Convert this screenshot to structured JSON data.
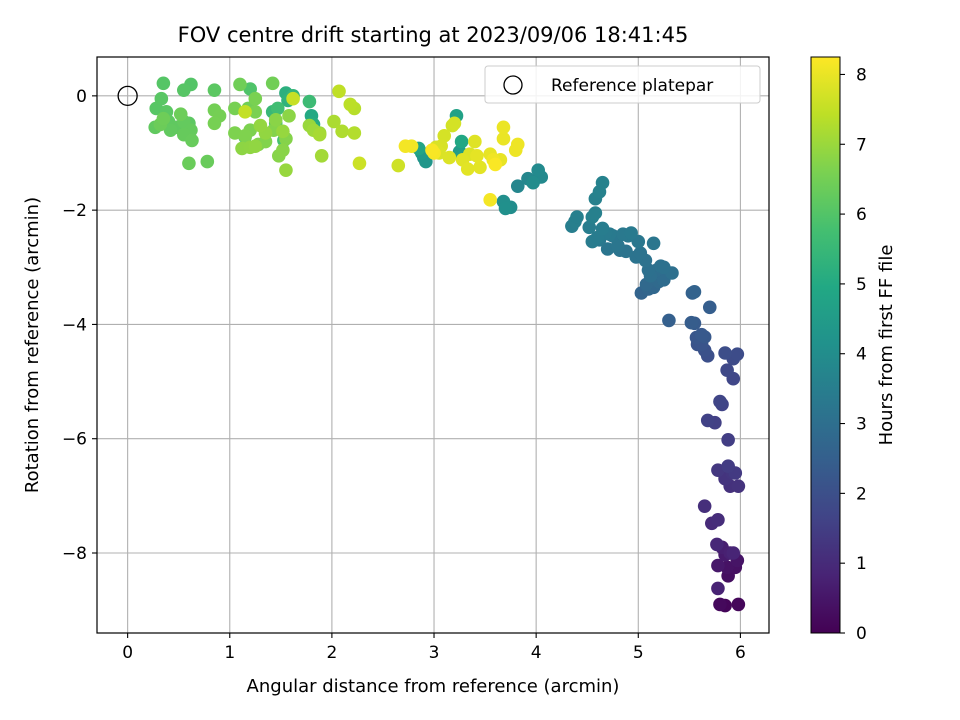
{
  "chart_data": {
    "type": "scatter",
    "title": "FOV centre drift starting at 2023/09/06 18:41:45",
    "xlabel": "Angular distance from reference (arcmin)",
    "ylabel": "Rotation from reference (arcmin)",
    "xlim": [
      -0.3,
      6.28
    ],
    "ylim": [
      -9.4,
      0.68
    ],
    "xticks": [
      0,
      1,
      2,
      3,
      4,
      5,
      6
    ],
    "yticks": [
      0,
      -2,
      -4,
      -6,
      -8
    ],
    "grid": true,
    "legend": {
      "position": "top-right",
      "entries": [
        "Reference platepar"
      ]
    },
    "reference_point": {
      "x": 0,
      "y": 0,
      "label": "Reference platepar"
    },
    "colorbar": {
      "label": "Hours from first FF file",
      "colormap": "viridis",
      "range": [
        0,
        8.25
      ],
      "ticks": [
        0,
        1,
        2,
        3,
        4,
        5,
        6,
        7,
        8
      ]
    },
    "series": [
      {
        "points": [
          [
            5.85,
            -8.92,
            0.1
          ],
          [
            5.98,
            -8.9,
            0.15
          ],
          [
            5.8,
            -8.9,
            0.2
          ],
          [
            5.88,
            -8.4,
            0.3
          ],
          [
            5.95,
            -8.25,
            0.35
          ],
          [
            5.87,
            -8.25,
            0.4
          ],
          [
            5.97,
            -8.13,
            0.45
          ],
          [
            5.78,
            -8.22,
            0.55
          ],
          [
            5.85,
            -8.03,
            0.6
          ],
          [
            5.82,
            -7.9,
            0.7
          ],
          [
            5.9,
            -8.0,
            0.75
          ],
          [
            5.78,
            -8.62,
            0.8
          ],
          [
            5.93,
            -8.0,
            0.85
          ],
          [
            5.77,
            -7.85,
            0.9
          ],
          [
            5.72,
            -7.48,
            1.0
          ],
          [
            5.78,
            -7.42,
            1.05
          ],
          [
            5.65,
            -7.18,
            1.1
          ],
          [
            5.9,
            -6.83,
            1.15
          ],
          [
            5.98,
            -6.83,
            1.2
          ],
          [
            5.85,
            -6.7,
            1.25
          ],
          [
            5.92,
            -6.6,
            1.3
          ],
          [
            5.78,
            -6.55,
            1.35
          ],
          [
            5.95,
            -6.6,
            1.4
          ],
          [
            5.88,
            -6.48,
            1.45
          ],
          [
            5.88,
            -6.02,
            1.5
          ],
          [
            5.75,
            -5.72,
            1.55
          ],
          [
            5.68,
            -5.68,
            1.6
          ],
          [
            5.82,
            -5.4,
            1.65
          ],
          [
            5.8,
            -5.35,
            1.7
          ],
          [
            5.93,
            -4.95,
            1.75
          ],
          [
            5.87,
            -4.8,
            1.8
          ],
          [
            5.93,
            -4.6,
            1.85
          ],
          [
            5.97,
            -4.52,
            1.9
          ],
          [
            5.85,
            -4.5,
            1.95
          ],
          [
            5.68,
            -4.55,
            2.0
          ],
          [
            5.65,
            -4.45,
            2.05
          ],
          [
            5.58,
            -4.35,
            2.1
          ],
          [
            5.62,
            -4.35,
            2.15
          ],
          [
            5.57,
            -4.23,
            2.2
          ],
          [
            5.65,
            -4.22,
            2.25
          ],
          [
            5.62,
            -4.18,
            2.3
          ],
          [
            5.55,
            -3.98,
            2.35
          ],
          [
            5.52,
            -3.97,
            2.4
          ],
          [
            5.7,
            -3.7,
            2.45
          ],
          [
            5.3,
            -3.93,
            2.5
          ],
          [
            5.53,
            -3.45,
            2.55
          ],
          [
            5.55,
            -3.43,
            2.6
          ],
          [
            5.03,
            -3.45,
            2.65
          ],
          [
            5.1,
            -3.38,
            2.7
          ],
          [
            5.15,
            -3.35,
            2.75
          ],
          [
            5.08,
            -3.3,
            2.8
          ],
          [
            5.2,
            -3.25,
            2.85
          ],
          [
            5.25,
            -3.22,
            2.9
          ],
          [
            5.18,
            -3.05,
            2.95
          ],
          [
            5.12,
            -3.15,
            3.0
          ],
          [
            5.33,
            -3.1,
            3.02
          ],
          [
            5.1,
            -3.05,
            3.04
          ],
          [
            5.22,
            -2.98,
            3.06
          ],
          [
            5.25,
            -3.0,
            3.08
          ],
          [
            5.07,
            -2.88,
            3.1
          ],
          [
            4.98,
            -2.82,
            3.12
          ],
          [
            5.02,
            -2.75,
            3.14
          ],
          [
            4.88,
            -2.72,
            3.16
          ],
          [
            4.82,
            -2.7,
            3.18
          ],
          [
            4.7,
            -2.68,
            3.2
          ],
          [
            4.8,
            -2.62,
            3.22
          ],
          [
            5.15,
            -2.58,
            3.24
          ],
          [
            5.0,
            -2.55,
            3.26
          ],
          [
            4.75,
            -2.45,
            3.28
          ],
          [
            4.62,
            -2.52,
            3.3
          ],
          [
            4.9,
            -2.45,
            3.32
          ],
          [
            4.85,
            -2.42,
            3.34
          ],
          [
            4.93,
            -2.4,
            3.36
          ],
          [
            4.72,
            -2.42,
            3.38
          ],
          [
            4.68,
            -2.4,
            3.4
          ],
          [
            4.55,
            -2.55,
            3.42
          ],
          [
            4.6,
            -2.48,
            3.44
          ],
          [
            4.65,
            -2.32,
            3.46
          ],
          [
            4.52,
            -2.3,
            3.48
          ],
          [
            4.35,
            -2.28,
            3.5
          ],
          [
            4.38,
            -2.2,
            3.52
          ],
          [
            4.4,
            -2.12,
            3.54
          ],
          [
            4.55,
            -2.12,
            3.56
          ],
          [
            4.58,
            -2.05,
            3.58
          ],
          [
            4.58,
            -1.8,
            3.6
          ],
          [
            4.62,
            -1.68,
            3.62
          ],
          [
            4.65,
            -1.52,
            3.64
          ],
          [
            4.03,
            -1.42,
            3.7
          ],
          [
            3.82,
            -1.58,
            3.75
          ],
          [
            3.92,
            -1.45,
            3.8
          ],
          [
            4.05,
            -1.42,
            3.85
          ],
          [
            4.02,
            -1.3,
            3.9
          ],
          [
            3.97,
            -1.52,
            3.95
          ],
          [
            3.75,
            -1.95,
            4.0
          ],
          [
            3.68,
            -1.85,
            4.05
          ],
          [
            3.7,
            -1.97,
            4.1
          ],
          [
            2.9,
            -1.08,
            4.2
          ],
          [
            2.92,
            -1.15,
            4.3
          ],
          [
            2.88,
            -1.0,
            4.4
          ],
          [
            3.25,
            -0.98,
            4.5
          ],
          [
            3.28,
            -1.05,
            4.6
          ],
          [
            3.22,
            -0.35,
            4.7
          ],
          [
            2.85,
            -0.92,
            4.8
          ],
          [
            3.27,
            -0.8,
            4.9
          ],
          [
            1.8,
            -0.35,
            5.0
          ],
          [
            1.82,
            -0.5,
            5.1
          ],
          [
            1.55,
            0.05,
            5.2
          ],
          [
            1.57,
            -0.08,
            5.3
          ],
          [
            1.62,
            0.0,
            5.4
          ],
          [
            1.42,
            -0.28,
            5.5
          ],
          [
            1.78,
            -0.1,
            5.6
          ],
          [
            1.47,
            -0.22,
            5.7
          ],
          [
            1.53,
            -0.78,
            5.8
          ],
          [
            1.45,
            -0.48,
            5.9
          ],
          [
            1.2,
            0.12,
            5.95
          ],
          [
            1.15,
            -0.72,
            6.0
          ],
          [
            0.62,
            0.2,
            6.02
          ],
          [
            0.35,
            0.22,
            6.04
          ],
          [
            0.55,
            0.1,
            6.06
          ],
          [
            0.28,
            -0.22,
            6.08
          ],
          [
            0.33,
            -0.05,
            6.1
          ],
          [
            0.38,
            -0.28,
            6.12
          ],
          [
            0.85,
            0.1,
            6.14
          ],
          [
            0.6,
            -0.48,
            6.16
          ],
          [
            0.4,
            -0.45,
            6.18
          ],
          [
            0.48,
            -0.55,
            6.2
          ],
          [
            0.27,
            -0.55,
            6.22
          ],
          [
            0.42,
            -0.6,
            6.24
          ],
          [
            0.55,
            -0.45,
            6.26
          ],
          [
            0.62,
            -0.6,
            6.28
          ],
          [
            0.55,
            -0.68,
            6.3
          ],
          [
            0.63,
            -0.78,
            6.32
          ],
          [
            0.78,
            -1.15,
            6.34
          ],
          [
            0.6,
            -1.18,
            6.36
          ],
          [
            0.32,
            -0.5,
            6.38
          ],
          [
            0.52,
            -0.32,
            6.4
          ],
          [
            0.35,
            -0.4,
            6.42
          ],
          [
            1.1,
            0.2,
            6.44
          ],
          [
            1.42,
            0.22,
            6.46
          ],
          [
            1.18,
            -0.22,
            6.48
          ],
          [
            0.85,
            -0.25,
            6.5
          ],
          [
            0.9,
            -0.35,
            6.52
          ],
          [
            0.85,
            -0.48,
            6.54
          ],
          [
            1.05,
            -0.22,
            6.56
          ],
          [
            1.25,
            -0.05,
            6.58
          ],
          [
            1.25,
            -0.28,
            6.6
          ],
          [
            1.2,
            -0.6,
            6.62
          ],
          [
            1.05,
            -0.65,
            6.64
          ],
          [
            1.15,
            -0.7,
            6.66
          ],
          [
            1.28,
            -0.85,
            6.68
          ],
          [
            1.35,
            -0.8,
            6.7
          ],
          [
            1.43,
            -0.6,
            6.72
          ],
          [
            1.55,
            -0.75,
            6.74
          ],
          [
            1.48,
            -1.05,
            6.76
          ],
          [
            1.52,
            -0.95,
            6.78
          ],
          [
            1.45,
            -0.42,
            6.8
          ],
          [
            1.58,
            -0.35,
            6.82
          ],
          [
            1.12,
            -0.92,
            6.84
          ],
          [
            1.2,
            -0.9,
            6.86
          ],
          [
            1.25,
            -0.88,
            6.88
          ],
          [
            1.35,
            -0.65,
            6.9
          ],
          [
            1.3,
            -0.52,
            6.92
          ],
          [
            1.52,
            -0.62,
            6.94
          ],
          [
            1.55,
            -1.3,
            6.96
          ],
          [
            1.78,
            -0.52,
            6.98
          ],
          [
            1.88,
            -0.65,
            7.0
          ],
          [
            1.82,
            -0.6,
            7.05
          ],
          [
            1.9,
            -1.05,
            7.1
          ],
          [
            1.88,
            -0.68,
            7.15
          ],
          [
            2.02,
            -0.45,
            7.2
          ],
          [
            2.1,
            -0.62,
            7.25
          ],
          [
            2.22,
            -0.65,
            7.3
          ],
          [
            2.22,
            -0.22,
            7.35
          ],
          [
            2.18,
            -0.15,
            7.4
          ],
          [
            2.07,
            0.08,
            7.45
          ],
          [
            1.15,
            -0.28,
            7.5
          ],
          [
            1.62,
            -0.05,
            7.55
          ],
          [
            2.27,
            -1.18,
            7.6
          ],
          [
            2.65,
            -1.22,
            7.65
          ],
          [
            3.18,
            -0.52,
            7.7
          ],
          [
            3.2,
            -0.48,
            7.72
          ],
          [
            3.1,
            -0.7,
            7.74
          ],
          [
            3.07,
            -0.88,
            7.76
          ],
          [
            3.02,
            -0.9,
            7.78
          ],
          [
            3.05,
            -1.0,
            7.8
          ],
          [
            3.15,
            -1.08,
            7.82
          ],
          [
            3.35,
            -1.02,
            7.84
          ],
          [
            3.4,
            -0.8,
            7.86
          ],
          [
            3.28,
            -1.12,
            7.88
          ],
          [
            3.33,
            -1.28,
            7.9
          ],
          [
            3.45,
            -1.25,
            7.92
          ],
          [
            3.42,
            -1.05,
            7.94
          ],
          [
            3.55,
            -1.02,
            7.96
          ],
          [
            3.65,
            -1.12,
            7.98
          ],
          [
            3.68,
            -0.75,
            8.0
          ],
          [
            3.68,
            -0.55,
            8.02
          ],
          [
            3.8,
            -0.95,
            8.04
          ],
          [
            3.82,
            -0.85,
            8.06
          ],
          [
            3.58,
            -1.12,
            8.08
          ],
          [
            2.78,
            -0.88,
            8.1
          ],
          [
            2.72,
            -0.88,
            8.12
          ],
          [
            3.55,
            -1.82,
            8.14
          ],
          [
            3.0,
            -1.0,
            8.16
          ],
          [
            2.98,
            -0.95,
            8.18
          ],
          [
            3.6,
            -1.2,
            8.2
          ]
        ]
      }
    ]
  }
}
